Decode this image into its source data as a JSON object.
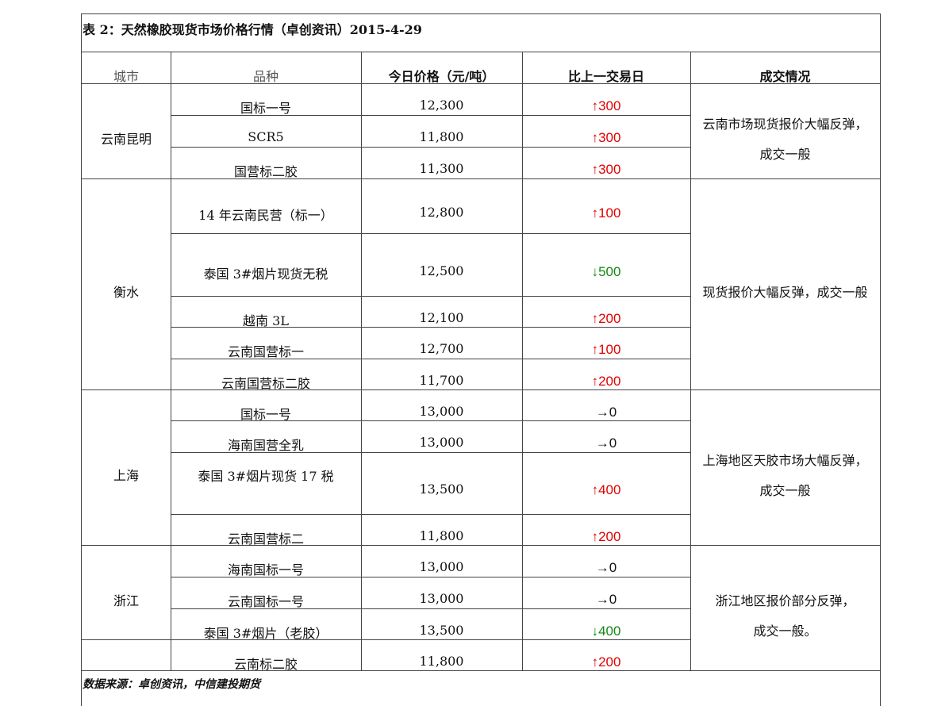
{
  "title": "表 2：天然橡胶现货市场价格行情（卓创资讯）2015-4-29",
  "headers": {
    "city": "城市",
    "variety": "品种",
    "price": "今日价格（元/吨）",
    "change": "比上一交易日",
    "remark": "成交情况"
  },
  "colors": {
    "up": "#e00000",
    "down": "#118811",
    "flat": "#111111"
  },
  "groups": [
    {
      "city": "云南昆明",
      "remark_lines": [
        "云南市场现货报价大幅反弹，",
        "成交一般"
      ]
    },
    {
      "city": "衡水",
      "remark_lines": [
        "现货报价大幅反弹，成交一般"
      ]
    },
    {
      "city": "上海",
      "remark_lines": [
        "上海地区天胶市场大幅反弹，",
        "成交一般"
      ]
    },
    {
      "city": "浙江",
      "remark_lines": [
        "浙江地区报价部分反弹，",
        "成交一般。"
      ]
    }
  ],
  "rows": [
    {
      "variety": "国标一号",
      "price": "12,300",
      "change": "↑300",
      "direction": "up"
    },
    {
      "variety": "SCR5",
      "price": "11,800",
      "change": "↑300",
      "direction": "up"
    },
    {
      "variety": "国营标二胶",
      "price": "11,300",
      "change": "↑300",
      "direction": "up"
    },
    {
      "variety": "14 年云南民营（标一）",
      "price": "12,800",
      "change": "↑100",
      "direction": "up"
    },
    {
      "variety": "泰国 3#烟片现货无税",
      "price": "12,500",
      "change": "↓500",
      "direction": "down"
    },
    {
      "variety": "越南 3L",
      "price": "12,100",
      "change": "↑200",
      "direction": "up"
    },
    {
      "variety": "云南国营标一",
      "price": "12,700",
      "change": "↑100",
      "direction": "up"
    },
    {
      "variety": "云南国营标二胶",
      "price": "11,700",
      "change": "↑200",
      "direction": "up"
    },
    {
      "variety": "国标一号",
      "price": "13,000",
      "change": "→0",
      "direction": "flat"
    },
    {
      "variety": "海南国营全乳",
      "price": "13,000",
      "change": "→0",
      "direction": "flat"
    },
    {
      "variety": "泰国 3#烟片现货 17 税",
      "price": "13,500",
      "change": "↑400",
      "direction": "up"
    },
    {
      "variety": "云南国营标二",
      "price": "11,800",
      "change": "↑200",
      "direction": "up"
    },
    {
      "variety": "海南国标一号",
      "price": "13,000",
      "change": "→0",
      "direction": "flat"
    },
    {
      "variety": "云南国标一号",
      "price": "13,000",
      "change": "→0",
      "direction": "flat"
    },
    {
      "variety": "泰国 3#烟片（老胶）",
      "price": "13,500",
      "change": "↓400",
      "direction": "down"
    },
    {
      "variety": "云南标二胶",
      "price": "11,800",
      "change": "↑200",
      "direction": "up"
    }
  ],
  "footer": "数据来源：卓创资讯，中信建投期货"
}
